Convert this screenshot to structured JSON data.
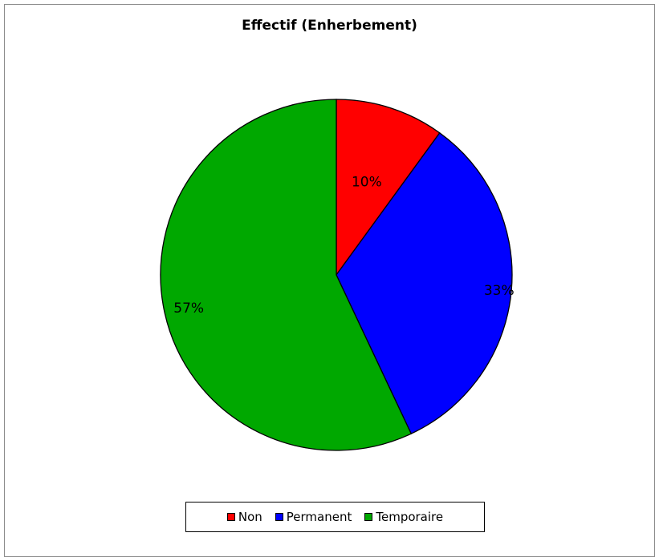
{
  "chart_data": {
    "type": "pie",
    "title": "Effectif (Enherbement)",
    "categories": [
      "Non",
      "Permanent",
      "Temporaire"
    ],
    "values": [
      10,
      33,
      57
    ],
    "data_labels": [
      "10%",
      "33%",
      "57%"
    ],
    "colors": [
      "#ff0000",
      "#0000ff",
      "#00a800"
    ],
    "legend_position": "bottom"
  }
}
